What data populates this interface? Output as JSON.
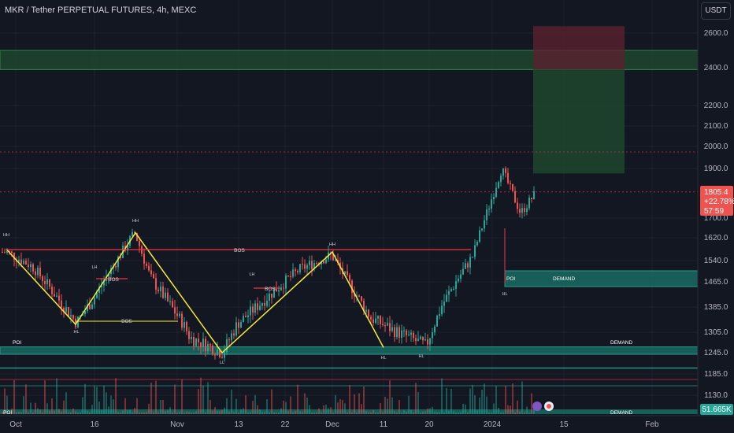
{
  "header": {
    "title": "MKR / Tether PERPETUAL FUTURES, 4h, MEXC",
    "currency": "USDT"
  },
  "colors": {
    "bg": "#131722",
    "up": "#26a69a",
    "down": "#ef5350",
    "yellow": "#f5e93a",
    "bos": "#f23645",
    "zone": "#1b4b44",
    "grid": "#1e222d",
    "axis_text": "#b2b5be"
  },
  "price_labels": [
    "2600.0",
    "2400.0",
    "2200.0",
    "2100.0",
    "2000.0",
    "1900.0",
    "1700.0",
    "1620.0",
    "1540.0",
    "1465.0",
    "1385.0",
    "1305.0",
    "1245.0",
    "1185.0",
    "1130.0"
  ],
  "last_price": {
    "price": "1805.4",
    "change": "+22.78%",
    "countdown": "57:59"
  },
  "volume_label": "51.665K",
  "time_labels": [
    "Oct",
    "16",
    "Nov",
    "13",
    "22",
    "Dec",
    "11",
    "20",
    "2024",
    "15",
    "Feb"
  ],
  "chart_data": {
    "type": "candlestick",
    "symbol": "MKR / Tether PERPETUAL FUTURES",
    "timeframe": "4h",
    "exchange": "MEXC",
    "y_ticks": [
      2600,
      2400,
      2200,
      2100,
      2000,
      1900,
      1700,
      1620,
      1540,
      1465,
      1385,
      1305,
      1245,
      1185,
      1130
    ],
    "x_ticks": [
      "Oct",
      "16",
      "Nov",
      "13",
      "22",
      "Dec",
      "11",
      "20",
      "2024",
      "15",
      "Feb"
    ],
    "price_path": [
      {
        "t": "Oct",
        "p": 1570
      },
      {
        "t": "6 Oct",
        "p": 1520
      },
      {
        "t": "12 Oct",
        "p": 1335
      },
      {
        "t": "16 Oct",
        "p": 1420
      },
      {
        "t": "22 Oct",
        "p": 1640
      },
      {
        "t": "26 Oct",
        "p": 1480
      },
      {
        "t": "31 Oct",
        "p": 1330
      },
      {
        "t": "Nov",
        "p": 1290
      },
      {
        "t": "9 Nov",
        "p": 1245
      },
      {
        "t": "13 Nov",
        "p": 1330
      },
      {
        "t": "19 Nov",
        "p": 1420
      },
      {
        "t": "25 Nov",
        "p": 1510
      },
      {
        "t": "Dec",
        "p": 1560
      },
      {
        "t": "6 Dec",
        "p": 1470
      },
      {
        "t": "11 Dec",
        "p": 1350
      },
      {
        "t": "16 Dec",
        "p": 1310
      },
      {
        "t": "20 Dec",
        "p": 1265
      },
      {
        "t": "26 Dec",
        "p": 1390
      },
      {
        "t": "30 Dec",
        "p": 1560
      },
      {
        "t": "2024",
        "p": 1900
      },
      {
        "t": "4 Jan",
        "p": 1720
      },
      {
        "t": "8 Jan",
        "p": 1805
      }
    ],
    "structure_points": [
      {
        "label": "HH",
        "price": 1580
      },
      {
        "label": "HL",
        "price": 1330
      },
      {
        "label": "LH",
        "price": 1470
      },
      {
        "label": "HH",
        "price": 1640
      },
      {
        "label": "LL",
        "price": 1245
      },
      {
        "label": "LH",
        "price": 1470
      },
      {
        "label": "HH",
        "price": 1570
      },
      {
        "label": "HL",
        "price": 1260
      },
      {
        "label": "HL",
        "price": 1260
      },
      {
        "label": "HL",
        "price": 1430
      }
    ],
    "annotations": [
      "BOS",
      "BOS",
      "BOS",
      "BOS",
      "POI",
      "DEMAND",
      "POI",
      "DEMAND",
      "POI",
      "DEMAND"
    ],
    "zones": [
      {
        "label": "POI / DEMAND",
        "from": 1245,
        "to": 1262
      },
      {
        "label": "POI / DEMAND",
        "from": 1438,
        "to": 1465
      },
      {
        "label": "resistance",
        "from": 2390,
        "to": 2500
      }
    ],
    "position": {
      "entry": 2000,
      "target": 1880,
      "stop": 2640
    },
    "last_price": 1805.4,
    "change_pct": "+22.78%",
    "volume_last": "51.665K",
    "grid": false
  }
}
